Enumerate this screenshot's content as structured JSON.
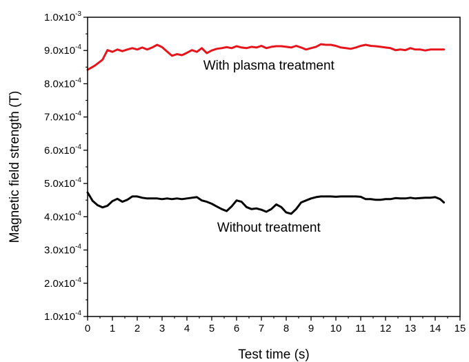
{
  "chart_data": {
    "type": "line",
    "title": "",
    "xlabel": "Test time (s)",
    "ylabel": "Magnetic field strength (T)",
    "xlim": [
      0,
      15
    ],
    "ylim": [
      0.0001,
      0.001
    ],
    "x_ticks": [
      "0",
      "1",
      "2",
      "3",
      "4",
      "5",
      "6",
      "7",
      "8",
      "9",
      "10",
      "11",
      "12",
      "13",
      "14",
      "15"
    ],
    "y_ticks": [
      {
        "mantissa": "1.0x10",
        "exponent": "-4",
        "value": 0.0001
      },
      {
        "mantissa": "2.0x10",
        "exponent": "-4",
        "value": 0.0002
      },
      {
        "mantissa": "3.0x10",
        "exponent": "-4",
        "value": 0.0003
      },
      {
        "mantissa": "4.0x10",
        "exponent": "-4",
        "value": 0.0004
      },
      {
        "mantissa": "5.0x10",
        "exponent": "-4",
        "value": 0.0005
      },
      {
        "mantissa": "6.0x10",
        "exponent": "-4",
        "value": 0.0006
      },
      {
        "mantissa": "7.0x10",
        "exponent": "-4",
        "value": 0.0007
      },
      {
        "mantissa": "8.0x10",
        "exponent": "-4",
        "value": 0.0008
      },
      {
        "mantissa": "9.0x10",
        "exponent": "-4",
        "value": 0.0009
      },
      {
        "mantissa": "1.0x10",
        "exponent": "-3",
        "value": 0.001
      }
    ],
    "grid": false,
    "legend": "none",
    "annotations": [
      {
        "text": "With plasma treatment",
        "x": 7.3,
        "y": 0.000842
      },
      {
        "text": "Without treatment",
        "x": 7.3,
        "y": 0.000355
      }
    ],
    "series": [
      {
        "color": "#e8141b",
        "x": [
          0,
          0.3,
          0.6,
          0.8,
          1.0,
          1.2,
          1.4,
          1.6,
          1.8,
          2.0,
          2.2,
          2.4,
          2.6,
          2.8,
          3.0,
          3.2,
          3.4,
          3.6,
          3.8,
          4.0,
          4.2,
          4.4,
          4.6,
          4.8,
          5.0,
          5.2,
          5.4,
          5.6,
          5.8,
          6.0,
          6.2,
          6.4,
          6.6,
          6.8,
          7.0,
          7.2,
          7.4,
          7.6,
          7.8,
          8.0,
          8.2,
          8.4,
          8.6,
          8.8,
          9.0,
          9.2,
          9.4,
          9.6,
          9.8,
          10.0,
          10.2,
          10.4,
          10.6,
          10.8,
          11.0,
          11.2,
          11.4,
          11.6,
          11.8,
          12.0,
          12.2,
          12.4,
          12.6,
          12.8,
          13.0,
          13.2,
          13.4,
          13.6,
          13.8,
          14.0,
          14.2,
          14.35
        ],
        "values": [
          0.000842,
          0.000855,
          0.000872,
          0.000901,
          0.000896,
          0.000903,
          0.000898,
          0.000903,
          0.000907,
          0.000903,
          0.000909,
          0.000903,
          0.000909,
          0.000917,
          0.00091,
          0.000897,
          0.000884,
          0.000889,
          0.000886,
          0.000893,
          0.000901,
          0.000896,
          0.000907,
          0.000892,
          0.0009,
          0.000905,
          0.000907,
          0.00091,
          0.000907,
          0.000913,
          0.000909,
          0.000907,
          0.000911,
          0.000909,
          0.000914,
          0.000907,
          0.000911,
          0.000913,
          0.000913,
          0.000911,
          0.000909,
          0.000914,
          0.000909,
          0.000903,
          0.000907,
          0.000911,
          0.000919,
          0.000917,
          0.000917,
          0.000914,
          0.000909,
          0.000907,
          0.000905,
          0.000909,
          0.000914,
          0.000917,
          0.000914,
          0.000913,
          0.000911,
          0.000909,
          0.000907,
          0.000901,
          0.000903,
          0.000901,
          0.000907,
          0.000903,
          0.000903,
          0.0009,
          0.000903,
          0.000903,
          0.000903,
          0.000903
        ]
      },
      {
        "color": "#000000",
        "x": [
          0,
          0.2,
          0.4,
          0.6,
          0.8,
          1.0,
          1.2,
          1.4,
          1.6,
          1.8,
          2.0,
          2.2,
          2.4,
          2.6,
          2.8,
          3.0,
          3.2,
          3.4,
          3.6,
          3.8,
          4.0,
          4.2,
          4.4,
          4.6,
          4.8,
          5.0,
          5.2,
          5.4,
          5.6,
          5.8,
          6.0,
          6.2,
          6.4,
          6.6,
          6.8,
          7.0,
          7.2,
          7.4,
          7.6,
          7.8,
          8.0,
          8.2,
          8.4,
          8.6,
          8.8,
          9.0,
          9.2,
          9.4,
          9.6,
          9.8,
          10.0,
          10.2,
          10.4,
          10.6,
          10.8,
          11.0,
          11.2,
          11.4,
          11.6,
          11.8,
          12.0,
          12.2,
          12.4,
          12.6,
          12.8,
          13.0,
          13.2,
          13.4,
          13.6,
          13.8,
          14.0,
          14.2,
          14.35
        ],
        "values": [
          0.000473,
          0.000448,
          0.000435,
          0.000428,
          0.000433,
          0.000447,
          0.000454,
          0.000445,
          0.000451,
          0.000461,
          0.000461,
          0.000457,
          0.000455,
          0.000455,
          0.000455,
          0.000453,
          0.000455,
          0.000453,
          0.000455,
          0.000453,
          0.000455,
          0.000457,
          0.000459,
          0.000449,
          0.000445,
          0.000439,
          0.000431,
          0.000423,
          0.000417,
          0.000431,
          0.000449,
          0.000445,
          0.000429,
          0.000423,
          0.000425,
          0.000421,
          0.000415,
          0.000423,
          0.000437,
          0.000429,
          0.000413,
          0.000409,
          0.000423,
          0.000443,
          0.000449,
          0.000455,
          0.000459,
          0.000461,
          0.000461,
          0.000461,
          0.00046,
          0.000461,
          0.000461,
          0.000461,
          0.000461,
          0.00046,
          0.000453,
          0.000453,
          0.000451,
          0.000451,
          0.000453,
          0.000453,
          0.000456,
          0.000455,
          0.000455,
          0.000457,
          0.000455,
          0.000456,
          0.000457,
          0.000457,
          0.000459,
          0.000453,
          0.000443
        ]
      }
    ]
  }
}
